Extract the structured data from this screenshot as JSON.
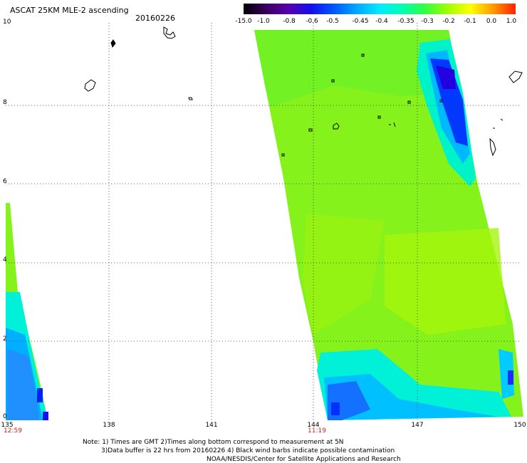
{
  "header": {
    "title": "ASCAT 25KM MLE-2 ascending",
    "date": "20160226"
  },
  "colorbar": {
    "labels": [
      "-15.0",
      "-1.0",
      "-0.8",
      "-0.6",
      "-0.5",
      "-0.45",
      "-0.4",
      "-0.35",
      "-0.3",
      "-0.2",
      "-0.1",
      "0.0",
      "1.0"
    ],
    "colors": [
      "#000000",
      "#3a0060",
      "#5a00b0",
      "#1010ee",
      "#0058ff",
      "#00a8ff",
      "#00eaff",
      "#00ffb0",
      "#30ff40",
      "#a0ff00",
      "#ffff00",
      "#ff9a00",
      "#ff2000"
    ]
  },
  "axes": {
    "x_ticks": [
      "135",
      "138",
      "141",
      "144",
      "147",
      "150"
    ],
    "y_ticks": [
      "0",
      "2",
      "4",
      "6",
      "8",
      "10"
    ],
    "time_labels": [
      "12:59",
      "11:19"
    ]
  },
  "footer": {
    "line1": "Note: 1) Times are GMT 2)Times along bottom correspond to measurement at 5N",
    "line2": "3)Data buffer is 22 hrs from 20160226 4) Black wind barbs indicate possible contamination",
    "line3": "NOAA/NESDIS/Center for Satellite Applications and Research"
  }
}
